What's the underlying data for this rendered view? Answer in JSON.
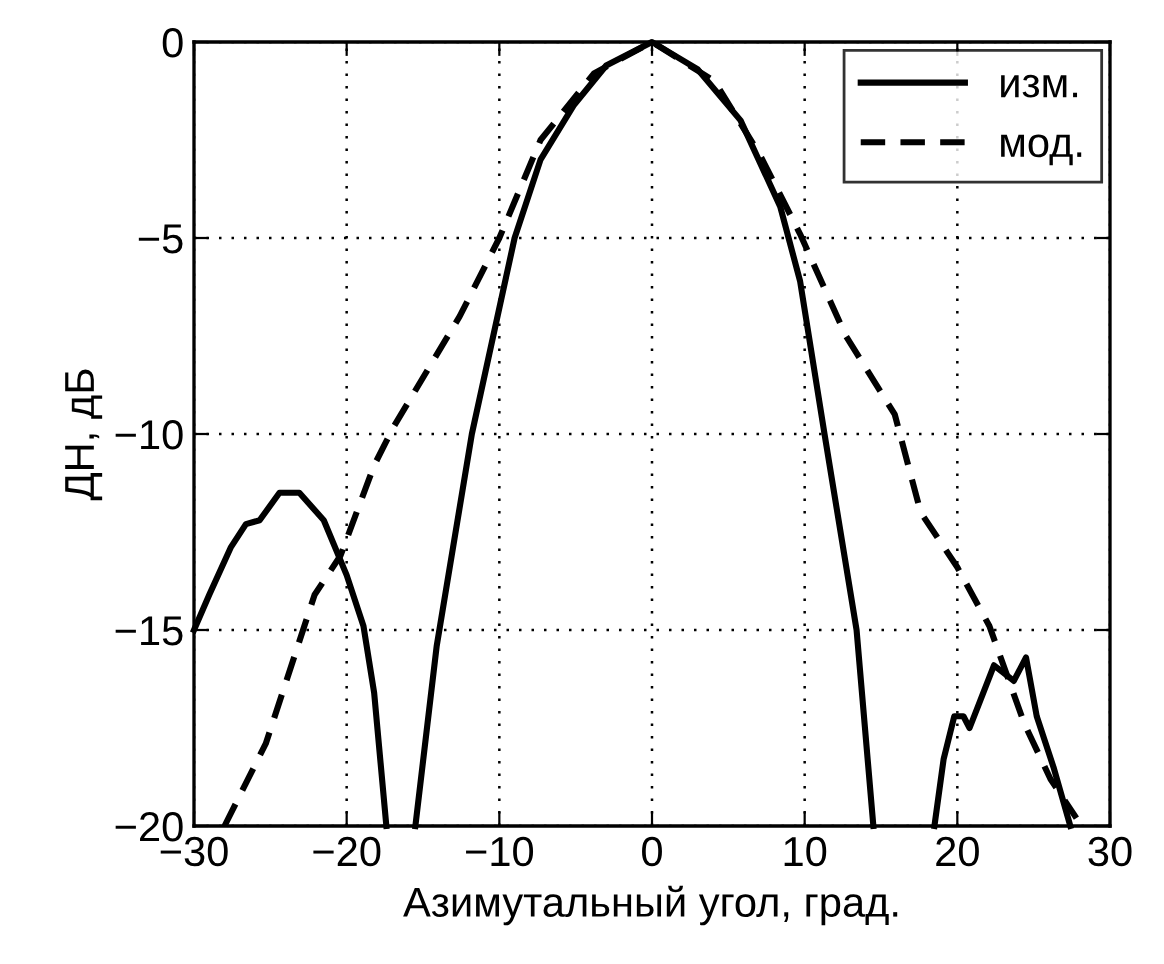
{
  "chart_data": {
    "type": "line",
    "xlabel": "Азимутальный угол, град.",
    "ylabel": "ДН, дБ",
    "series": [
      {
        "name": "изм.",
        "color": "#000000",
        "line_style": "solid",
        "x": [
          -30,
          -29,
          -27.6,
          -26.6,
          -25.7,
          -24.4,
          -23.1,
          -21.5,
          -20.0,
          -18.9,
          -18.2,
          -17.4,
          null,
          -15.5,
          -14.1,
          -11.8,
          -9.0,
          -7.3,
          -5.1,
          -3.0,
          0,
          3.0,
          5.8,
          8.4,
          9.7,
          11.3,
          13.4,
          14.5,
          null,
          18.5,
          19.1,
          19.8,
          20.4,
          20.8,
          21.5,
          22.4,
          23.7,
          24.5,
          25.2,
          26.3,
          27.4
        ],
        "values": [
          -15,
          -14.1,
          -12.9,
          -12.3,
          -12.2,
          -11.5,
          -11.5,
          -12.2,
          -13.6,
          -14.9,
          -16.6,
          -20,
          null,
          -20,
          -15.4,
          -10,
          -5,
          -3.0,
          -1.6,
          -0.6,
          0,
          -0.7,
          -2.0,
          -4.2,
          -6.1,
          -10,
          -15,
          -20,
          null,
          -20,
          -18.3,
          -17.2,
          -17.2,
          -17.5,
          -16.8,
          -15.9,
          -16.3,
          -15.7,
          -17.2,
          -18.5,
          -20
        ]
      },
      {
        "name": "мод.",
        "color": "#000000",
        "line_style": "dashed",
        "x": [
          -28,
          -25.3,
          -22.1,
          -20.4,
          -18.2,
          -16.9,
          -12.6,
          -10,
          -7.3,
          -3.8,
          0,
          4.1,
          7.1,
          9.7,
          12.7,
          15.9,
          17.6,
          20,
          22.1,
          24.4,
          26.1,
          27.8
        ],
        "values": [
          -20,
          -17.9,
          -14.1,
          -13.1,
          -10.8,
          -9.8,
          -7.0,
          -5,
          -2.5,
          -0.8,
          0,
          -1.0,
          -2.9,
          -4.9,
          -7.5,
          -9.5,
          -12,
          -13.4,
          -14.9,
          -17.4,
          -18.8,
          -19.8
        ]
      }
    ],
    "xlim": [
      -30,
      30
    ],
    "ylim": [
      -20,
      0
    ],
    "xticks": [
      -30,
      -20,
      -10,
      0,
      10,
      20,
      30
    ],
    "yticks": [
      -20,
      -15,
      -10,
      -5,
      0
    ],
    "grid": true,
    "legend": "top right"
  }
}
